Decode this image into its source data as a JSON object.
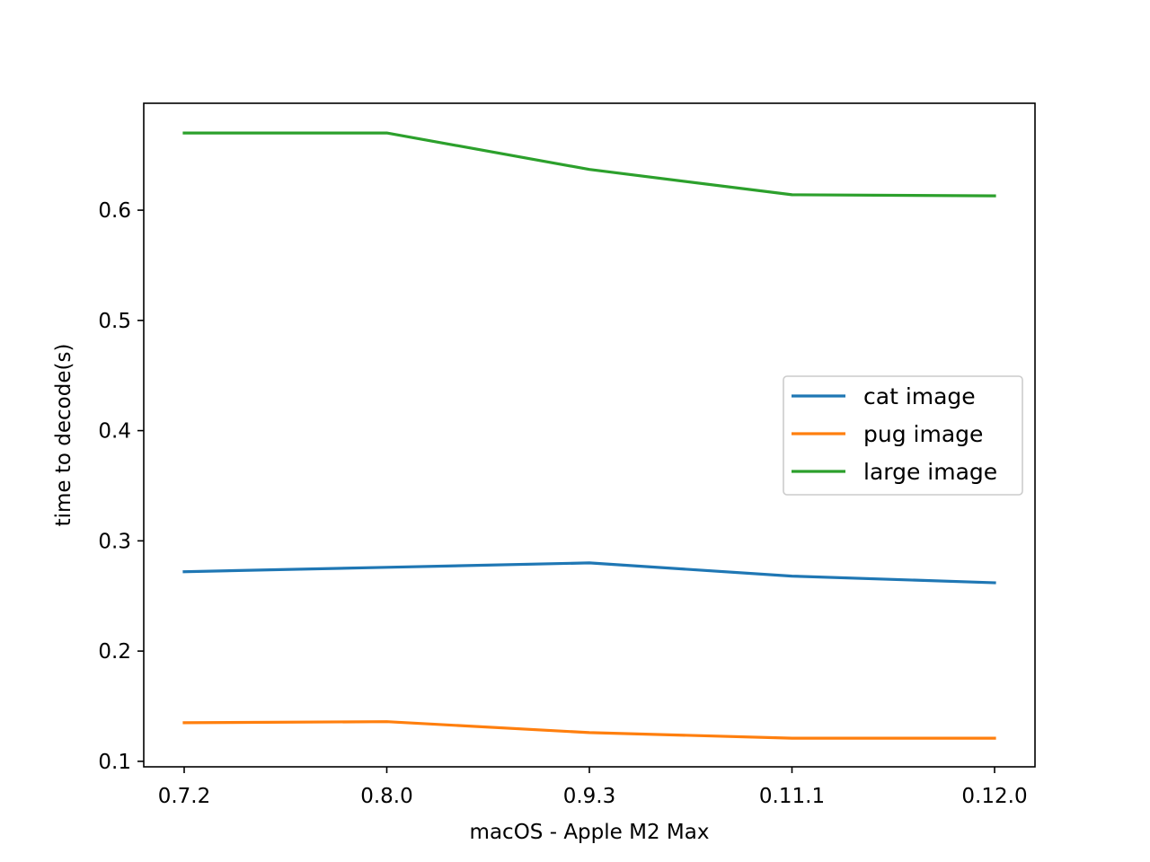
{
  "chart_data": {
    "type": "line",
    "title": "",
    "xlabel": "macOS - Apple M2 Max",
    "ylabel": "time to decode(s)",
    "categories": [
      "0.7.2",
      "0.8.0",
      "0.9.3",
      "0.11.1",
      "0.12.0"
    ],
    "ylim": [
      0.095,
      0.697
    ],
    "yticks": [
      0.1,
      0.2,
      0.3,
      0.4,
      0.5,
      0.6
    ],
    "ytick_labels": [
      "0.1",
      "0.2",
      "0.3",
      "0.4",
      "0.5",
      "0.6"
    ],
    "grid": false,
    "legend_position": "center-right",
    "series": [
      {
        "name": "cat image",
        "color": "#1f77b4",
        "values": [
          0.272,
          0.276,
          0.28,
          0.268,
          0.262
        ]
      },
      {
        "name": "pug image",
        "color": "#ff7f0e",
        "values": [
          0.135,
          0.136,
          0.126,
          0.121,
          0.121
        ]
      },
      {
        "name": "large image",
        "color": "#2ca02c",
        "values": [
          0.67,
          0.67,
          0.637,
          0.614,
          0.613
        ]
      }
    ]
  }
}
